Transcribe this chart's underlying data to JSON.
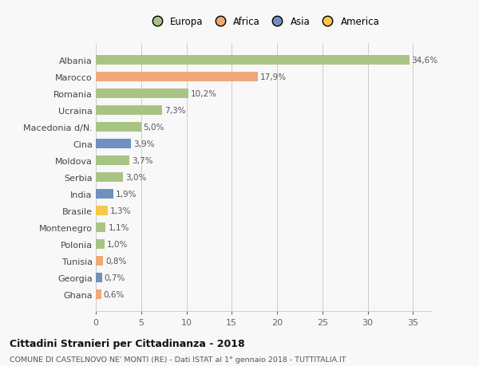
{
  "countries": [
    "Albania",
    "Marocco",
    "Romania",
    "Ucraina",
    "Macedonia d/N.",
    "Cina",
    "Moldova",
    "Serbia",
    "India",
    "Brasile",
    "Montenegro",
    "Polonia",
    "Tunisia",
    "Georgia",
    "Ghana"
  ],
  "values": [
    34.6,
    17.9,
    10.2,
    7.3,
    5.0,
    3.9,
    3.7,
    3.0,
    1.9,
    1.3,
    1.1,
    1.0,
    0.8,
    0.7,
    0.6
  ],
  "labels": [
    "34,6%",
    "17,9%",
    "10,2%",
    "7,3%",
    "5,0%",
    "3,9%",
    "3,7%",
    "3,0%",
    "1,9%",
    "1,3%",
    "1,1%",
    "1,0%",
    "0,8%",
    "0,7%",
    "0,6%"
  ],
  "continents": [
    "Europa",
    "Africa",
    "Europa",
    "Europa",
    "Europa",
    "Asia",
    "Europa",
    "Europa",
    "Asia",
    "America",
    "Europa",
    "Europa",
    "Africa",
    "Asia",
    "Africa"
  ],
  "colors": {
    "Europa": "#a8c484",
    "Africa": "#f0a878",
    "Asia": "#7090c0",
    "America": "#f5c84a"
  },
  "title": "Cittadini Stranieri per Cittadinanza - 2018",
  "subtitle": "COMUNE DI CASTELNOVO NE' MONTI (RE) - Dati ISTAT al 1° gennaio 2018 - TUTTITALIA.IT",
  "xlim": [
    0,
    37
  ],
  "xticks": [
    0,
    5,
    10,
    15,
    20,
    25,
    30,
    35
  ],
  "background_color": "#f8f8f8",
  "legend_order": [
    "Europa",
    "Africa",
    "Asia",
    "America"
  ]
}
